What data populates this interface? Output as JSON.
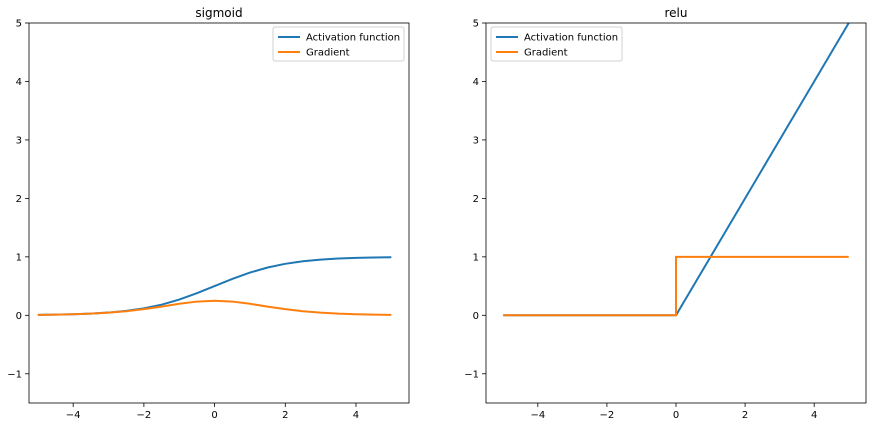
{
  "chart_data": [
    {
      "type": "line",
      "title": "sigmoid",
      "xlabel": "",
      "ylabel": "",
      "xlim": [
        -5.25,
        5.5
      ],
      "ylim": [
        -1.5,
        5
      ],
      "xticks": [
        -4,
        -2,
        0,
        2,
        4
      ],
      "yticks": [
        -1,
        0,
        1,
        2,
        3,
        4,
        5
      ],
      "xtick_labels": [
        "−4",
        "−2",
        "0",
        "2",
        "4"
      ],
      "ytick_labels": [
        "−1",
        "0",
        "1",
        "2",
        "3",
        "4",
        "5"
      ],
      "grid": false,
      "legend_position": "top-right",
      "series": [
        {
          "name": "Activation function",
          "color": "#1f77b4",
          "x": [
            -5,
            -4.5,
            -4,
            -3.5,
            -3,
            -2.5,
            -2,
            -1.5,
            -1,
            -0.5,
            0,
            0.5,
            1,
            1.5,
            2,
            2.5,
            3,
            3.5,
            4,
            4.5,
            5
          ],
          "y": [
            0.007,
            0.011,
            0.018,
            0.029,
            0.047,
            0.076,
            0.119,
            0.182,
            0.269,
            0.378,
            0.5,
            0.622,
            0.731,
            0.818,
            0.881,
            0.924,
            0.953,
            0.971,
            0.982,
            0.989,
            0.993
          ]
        },
        {
          "name": "Gradient",
          "color": "#ff7f0e",
          "x": [
            -5,
            -4.5,
            -4,
            -3.5,
            -3,
            -2.5,
            -2,
            -1.5,
            -1,
            -0.5,
            0,
            0.5,
            1,
            1.5,
            2,
            2.5,
            3,
            3.5,
            4,
            4.5,
            5
          ],
          "y": [
            0.007,
            0.011,
            0.018,
            0.028,
            0.045,
            0.07,
            0.105,
            0.149,
            0.197,
            0.235,
            0.25,
            0.235,
            0.197,
            0.149,
            0.105,
            0.07,
            0.045,
            0.028,
            0.018,
            0.011,
            0.007
          ]
        }
      ]
    },
    {
      "type": "line",
      "title": "relu",
      "xlabel": "",
      "ylabel": "",
      "xlim": [
        -5.5,
        5.5
      ],
      "ylim": [
        -1.5,
        5
      ],
      "xticks": [
        -4,
        -2,
        0,
        2,
        4
      ],
      "yticks": [
        -1,
        0,
        1,
        2,
        3,
        4,
        5
      ],
      "xtick_labels": [
        "−4",
        "−2",
        "0",
        "2",
        "4"
      ],
      "ytick_labels": [
        "−1",
        "0",
        "1",
        "2",
        "3",
        "4",
        "5"
      ],
      "grid": false,
      "legend_position": "top-left",
      "series": [
        {
          "name": "Activation function",
          "color": "#1f77b4",
          "x": [
            -5,
            0,
            5
          ],
          "y": [
            0,
            0,
            5
          ]
        },
        {
          "name": "Gradient",
          "color": "#ff7f0e",
          "x": [
            -5,
            0,
            0,
            5
          ],
          "y": [
            0,
            0,
            1,
            1
          ]
        }
      ]
    }
  ]
}
